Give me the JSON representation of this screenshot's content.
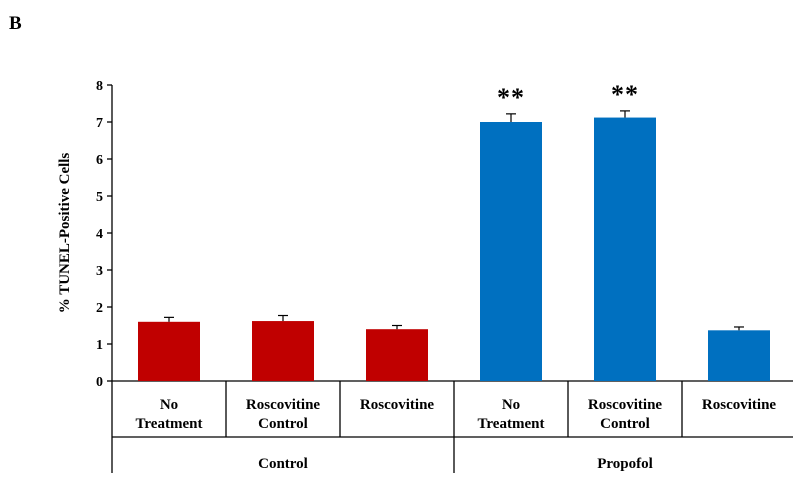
{
  "panel_label": "B",
  "colors": {
    "control": "#c00000",
    "propofol": "#0070c0",
    "axis": "#000000"
  },
  "chart_data": {
    "type": "bar",
    "title": "",
    "ylabel": "% TUNEL-Positive Cells",
    "xlabel": "",
    "ylim": [
      0,
      8
    ],
    "yticks": [
      "0",
      "1",
      "2",
      "3",
      "4",
      "5",
      "6",
      "7",
      "8"
    ],
    "grid": false,
    "legend": "none",
    "groups": [
      {
        "name": "Control",
        "color": "#c00000",
        "bars": [
          {
            "label": [
              "No",
              "Treatment"
            ],
            "value": 1.6,
            "error": 0.12,
            "sig": ""
          },
          {
            "label": [
              "Roscovitine",
              "Control"
            ],
            "value": 1.62,
            "error": 0.15,
            "sig": ""
          },
          {
            "label": [
              "Roscovitine"
            ],
            "value": 1.4,
            "error": 0.1,
            "sig": ""
          }
        ]
      },
      {
        "name": "Propofol",
        "color": "#0070c0",
        "bars": [
          {
            "label": [
              "No",
              "Treatment"
            ],
            "value": 7.0,
            "error": 0.22,
            "sig": "**"
          },
          {
            "label": [
              "Roscovitine",
              "Control"
            ],
            "value": 7.12,
            "error": 0.18,
            "sig": "**"
          },
          {
            "label": [
              "Roscovitine"
            ],
            "value": 1.37,
            "error": 0.09,
            "sig": ""
          }
        ]
      }
    ]
  }
}
